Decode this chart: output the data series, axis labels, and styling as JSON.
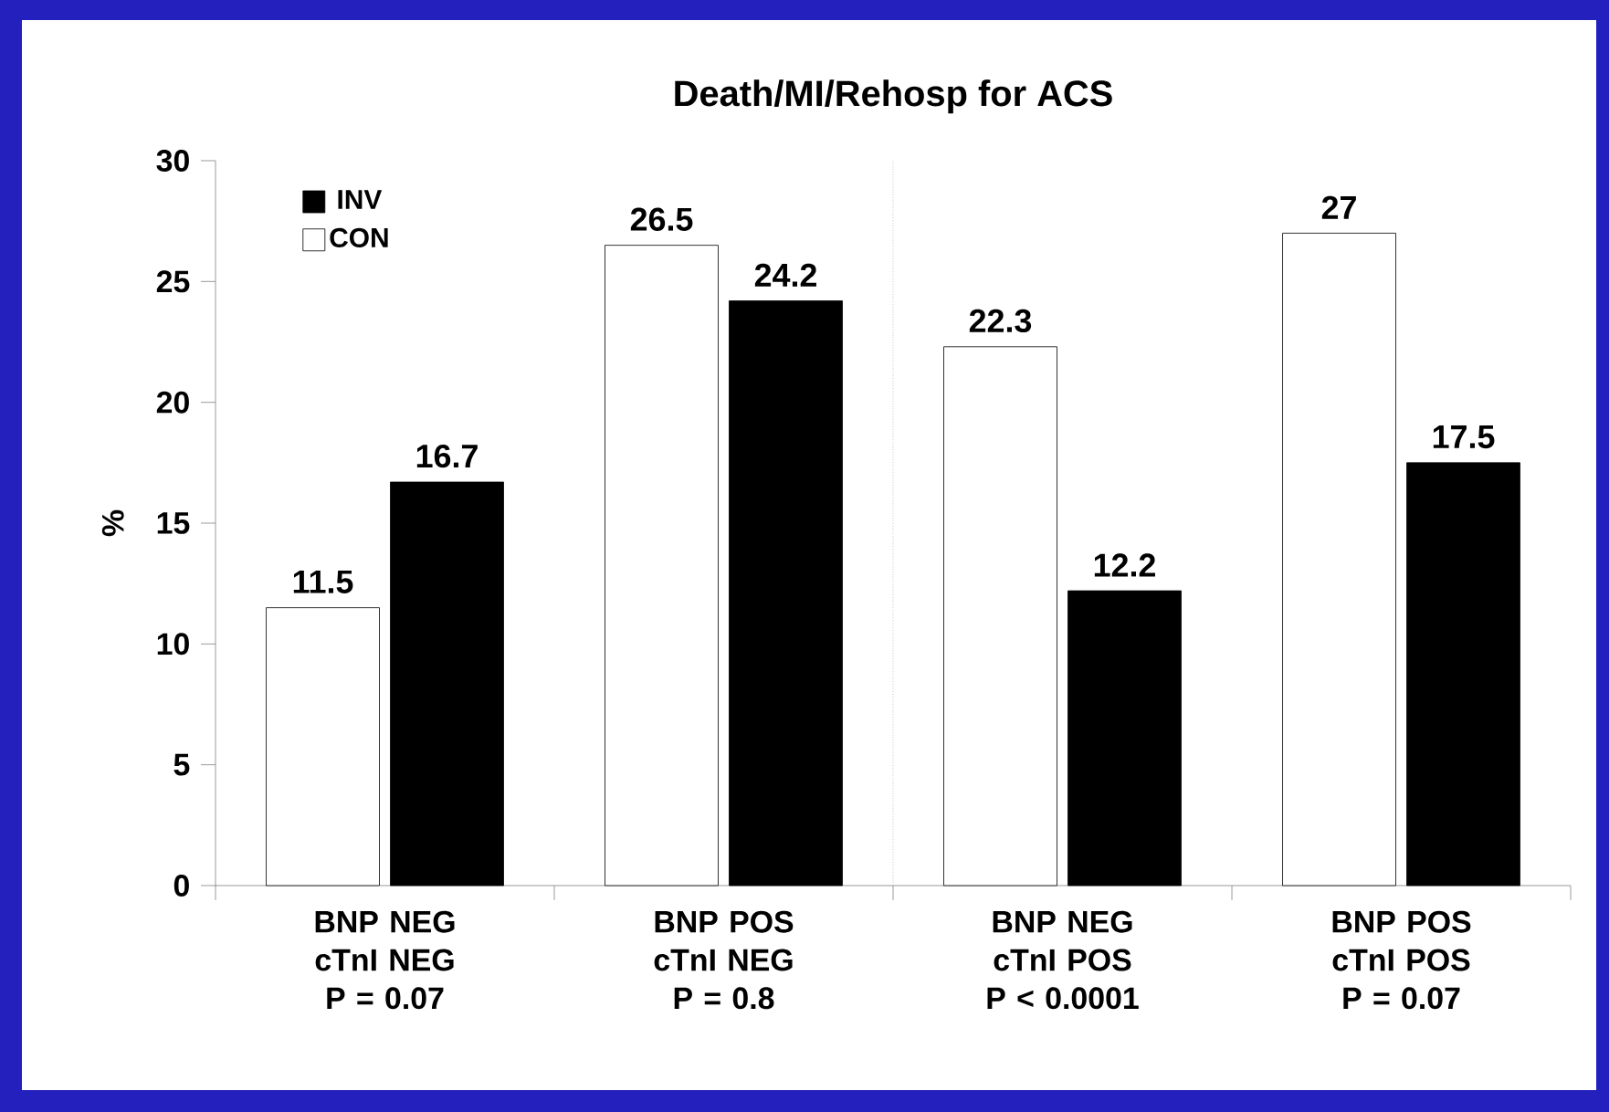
{
  "chart_data": {
    "type": "bar",
    "title": "Death/MI/Rehosp for ACS",
    "ylabel": "%",
    "categories": [
      "BNP NEG cTnI NEG P = 0.07",
      "BNP POS cTnI NEG P = 0.8",
      "BNP NEG cTnI POS P < 0.0001",
      "BNP POS cTnI POS P = 0.07"
    ],
    "series": [
      {
        "name": "CON",
        "color": "#ffffff",
        "values": [
          11.5,
          26.5,
          22.3,
          27
        ]
      },
      {
        "name": "INV",
        "color": "#000000",
        "values": [
          16.7,
          24.2,
          12.2,
          17.5
        ]
      }
    ],
    "ylim": [
      0,
      30
    ],
    "yticks": [
      0,
      5,
      10,
      15,
      20,
      25,
      30
    ],
    "data_labels": true,
    "legend": "top left",
    "grid": false
  }
}
